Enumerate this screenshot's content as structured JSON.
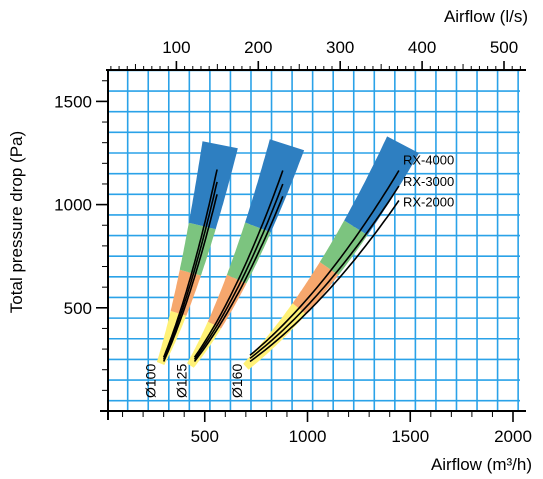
{
  "chart_data": {
    "type": "line",
    "x_axis_bottom": {
      "label": "Airflow (m³/h)",
      "unit": "m³/h",
      "range": [
        0,
        2000
      ],
      "ticks": [
        500,
        1000,
        1500,
        2000
      ],
      "tick_labels": [
        "500",
        "1000",
        "1500",
        "2000"
      ]
    },
    "x_axis_top": {
      "label": "Airflow (l/s)",
      "unit": "l/s",
      "ticks": [
        100,
        200,
        300,
        400,
        500
      ],
      "tick_labels": [
        "100",
        "200",
        "300",
        "400",
        "500"
      ]
    },
    "y_axis": {
      "label": "Total pressure drop (Pa)",
      "unit": "Pa",
      "range": [
        0,
        1650
      ],
      "ticks": [
        500,
        1000,
        1500
      ],
      "tick_labels": [
        "500",
        "1000",
        "1500"
      ]
    },
    "grid": true,
    "series_labels": [
      "RX-4000",
      "RX-3000",
      "RX-2000"
    ],
    "diameters": [
      {
        "label": "Ø100",
        "curves": [
          {
            "series": "RX-4000",
            "points": [
              [
                300,
                260
              ],
              [
                560,
                1170
              ]
            ]
          },
          {
            "series": "RX-3000",
            "points": [
              [
                300,
                250
              ],
              [
                560,
                1110
              ]
            ]
          },
          {
            "series": "RX-2000",
            "points": [
              [
                300,
                240
              ],
              [
                560,
                1050
              ]
            ]
          }
        ],
        "band": {
          "points": [
            [
              285,
              230
            ],
            [
              575,
              1290
            ]
          ]
        },
        "band_colors": [
          "#fff176",
          "#f6a76d",
          "#7cc47f",
          "#2e7fc1"
        ],
        "band_breaks": [
          0.3,
          0.5,
          0.7
        ]
      },
      {
        "label": "Ø125",
        "curves": [
          {
            "series": "RX-4000",
            "points": [
              [
                450,
                260
              ],
              [
                880,
                1165
              ]
            ]
          },
          {
            "series": "RX-3000",
            "points": [
              [
                450,
                250
              ],
              [
                880,
                1100
              ]
            ]
          },
          {
            "series": "RX-2000",
            "points": [
              [
                450,
                240
              ],
              [
                880,
                1040
              ]
            ]
          }
        ],
        "band": {
          "points": [
            [
              430,
              220
            ],
            [
              900,
              1290
            ]
          ]
        },
        "band_colors": [
          "#fff176",
          "#f6a76d",
          "#7cc47f",
          "#2e7fc1"
        ],
        "band_breaks": [
          0.25,
          0.48,
          0.7
        ]
      },
      {
        "label": "Ø160",
        "curves": [
          {
            "series": "RX-4000",
            "points": [
              [
                720,
                270
              ],
              [
                1445,
                1165
              ]
            ]
          },
          {
            "series": "RX-3000",
            "points": [
              [
                720,
                255
              ],
              [
                1445,
                1090
              ]
            ]
          },
          {
            "series": "RX-2000",
            "points": [
              [
                720,
                240
              ],
              [
                1445,
                1020
              ]
            ]
          }
        ],
        "band": {
          "points": [
            [
              700,
              215
            ],
            [
              1465,
              1290
            ]
          ]
        },
        "band_colors": [
          "#fff176",
          "#f6a76d",
          "#7cc47f",
          "#2e7fc1"
        ],
        "band_breaks": [
          0.34,
          0.53,
          0.7
        ]
      }
    ]
  }
}
